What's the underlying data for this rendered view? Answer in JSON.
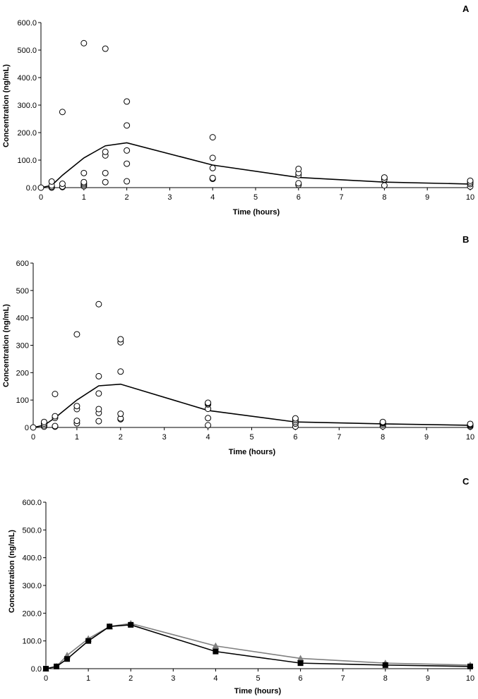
{
  "chart_data": [
    {
      "panel_label": "A",
      "type": "scatter",
      "xlabel": "Time (hours)",
      "ylabel": "Concentration (ng/mL)",
      "xlim": [
        0,
        10
      ],
      "ylim": [
        0,
        600
      ],
      "xticks": [
        "0",
        "1",
        "2",
        "3",
        "4",
        "5",
        "6",
        "7",
        "8",
        "9",
        "10"
      ],
      "yticks": [
        "0.0",
        "100.0",
        "200.0",
        "300.0",
        "400.0",
        "500.0",
        "600.0"
      ],
      "scatter_points": [
        [
          0,
          0
        ],
        [
          0.25,
          0
        ],
        [
          0.25,
          3
        ],
        [
          0.25,
          8
        ],
        [
          0.25,
          22
        ],
        [
          0.5,
          2
        ],
        [
          0.5,
          4
        ],
        [
          0.5,
          14
        ],
        [
          0.5,
          275
        ],
        [
          1,
          5
        ],
        [
          1,
          10
        ],
        [
          1,
          15
        ],
        [
          1,
          20
        ],
        [
          1,
          53
        ],
        [
          1,
          525
        ],
        [
          1.5,
          20
        ],
        [
          1.5,
          53
        ],
        [
          1.5,
          117
        ],
        [
          1.5,
          130
        ],
        [
          1.5,
          505
        ],
        [
          2,
          23
        ],
        [
          2,
          87
        ],
        [
          2,
          135
        ],
        [
          2,
          226
        ],
        [
          2,
          313
        ],
        [
          4,
          32
        ],
        [
          4,
          35
        ],
        [
          4,
          71
        ],
        [
          4,
          108
        ],
        [
          4,
          183
        ],
        [
          6,
          10
        ],
        [
          6,
          16
        ],
        [
          6,
          45
        ],
        [
          6,
          53
        ],
        [
          6,
          68
        ],
        [
          8,
          8
        ],
        [
          8,
          30
        ],
        [
          8,
          37
        ],
        [
          10,
          4
        ],
        [
          10,
          13
        ],
        [
          10,
          19
        ],
        [
          10,
          25
        ]
      ],
      "line": {
        "x": [
          0,
          0.25,
          0.5,
          1,
          1.5,
          2,
          4,
          6,
          8,
          10
        ],
        "y": [
          0,
          8,
          45,
          108,
          152,
          163,
          82,
          37,
          20,
          13
        ]
      }
    },
    {
      "panel_label": "B",
      "type": "scatter",
      "xlabel": "Time (hours)",
      "ylabel": "Concentration (ng/mL)",
      "xlim": [
        0,
        10
      ],
      "ylim": [
        0,
        600
      ],
      "xticks": [
        "0",
        "1",
        "2",
        "3",
        "4",
        "5",
        "6",
        "7",
        "8",
        "9",
        "10"
      ],
      "yticks": [
        "0",
        "100",
        "200",
        "300",
        "400",
        "500",
        "600"
      ],
      "scatter_points": [
        [
          0,
          0
        ],
        [
          0.25,
          3
        ],
        [
          0.25,
          8
        ],
        [
          0.25,
          14
        ],
        [
          0.25,
          20
        ],
        [
          0.5,
          3
        ],
        [
          0.5,
          5
        ],
        [
          0.5,
          35
        ],
        [
          0.5,
          41
        ],
        [
          0.5,
          122
        ],
        [
          1,
          15
        ],
        [
          1,
          24
        ],
        [
          1,
          67
        ],
        [
          1,
          78
        ],
        [
          1,
          340
        ],
        [
          1.5,
          23
        ],
        [
          1.5,
          53
        ],
        [
          1.5,
          67
        ],
        [
          1.5,
          124
        ],
        [
          1.5,
          187
        ],
        [
          1.5,
          450
        ],
        [
          2,
          30
        ],
        [
          2,
          33
        ],
        [
          2,
          50
        ],
        [
          2,
          204
        ],
        [
          2,
          311
        ],
        [
          2,
          322
        ],
        [
          4,
          8
        ],
        [
          4,
          34
        ],
        [
          4,
          68
        ],
        [
          4,
          84
        ],
        [
          4,
          88
        ],
        [
          4,
          90
        ],
        [
          6,
          3
        ],
        [
          6,
          14
        ],
        [
          6,
          20
        ],
        [
          6,
          27
        ],
        [
          6,
          33
        ],
        [
          8,
          4
        ],
        [
          8,
          10
        ],
        [
          8,
          15
        ],
        [
          8,
          18
        ],
        [
          8,
          20
        ],
        [
          10,
          3
        ],
        [
          10,
          7
        ],
        [
          10,
          10
        ],
        [
          10,
          13
        ]
      ],
      "line": {
        "x": [
          0,
          0.25,
          0.5,
          1,
          1.5,
          2,
          4,
          6,
          8,
          10
        ],
        "y": [
          0,
          8,
          35,
          100,
          152,
          158,
          62,
          20,
          13,
          8
        ]
      }
    },
    {
      "panel_label": "C",
      "type": "line",
      "xlabel": "Time (hours)",
      "ylabel": "Concentration (ng/mL)",
      "xlim": [
        0,
        10
      ],
      "ylim": [
        0,
        600
      ],
      "xticks": [
        "0",
        "1",
        "2",
        "3",
        "4",
        "5",
        "6",
        "7",
        "8",
        "9",
        "10"
      ],
      "yticks": [
        "0.0",
        "100.0",
        "200.0",
        "300.0",
        "400.0",
        "500.0",
        "600.0"
      ],
      "series": [
        {
          "marker": "triangle",
          "color": "#808080",
          "x": [
            0,
            0.25,
            0.5,
            1,
            1.5,
            2,
            4,
            6,
            8,
            10
          ],
          "y": [
            0,
            8,
            48,
            108,
            152,
            163,
            82,
            37,
            20,
            13
          ]
        },
        {
          "marker": "square",
          "color": "#000000",
          "x": [
            0,
            0.25,
            0.5,
            1,
            1.5,
            2,
            4,
            6,
            8,
            10
          ],
          "y": [
            0,
            8,
            35,
            100,
            152,
            158,
            62,
            20,
            13,
            8
          ]
        }
      ]
    }
  ]
}
